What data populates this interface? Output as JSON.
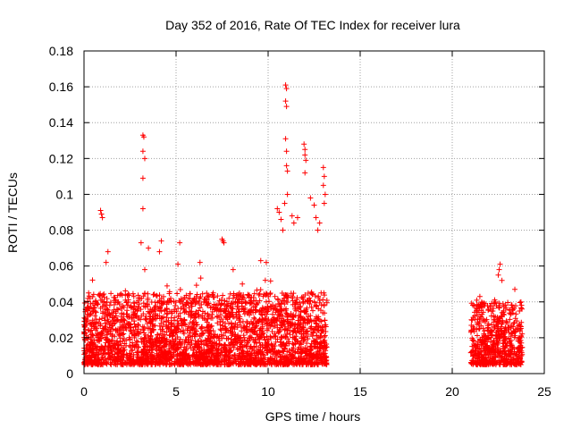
{
  "chart_data": {
    "type": "scatter",
    "title": "Day 352 of 2016, Rate Of TEC Index for receiver lura",
    "xlabel": "GPS time / hours",
    "ylabel": "ROTI / TECUs",
    "xlim": [
      0,
      25
    ],
    "ylim": [
      0,
      0.18
    ],
    "xticks": [
      0,
      5,
      10,
      15,
      20,
      25
    ],
    "yticks": [
      0,
      0.02,
      0.04,
      0.06,
      0.08,
      0.1,
      0.12,
      0.14,
      0.16,
      0.18
    ],
    "xtick_labels": [
      "0",
      "5",
      "10",
      "15",
      "20",
      "25"
    ],
    "ytick_labels": [
      "0",
      "0.02",
      "0.04",
      "0.06",
      "0.08",
      "0.1",
      "0.12",
      "0.14",
      "0.16",
      "0.18"
    ],
    "grid": true,
    "marker": "+",
    "color": "#ff0000",
    "points": [
      [
        0.9,
        0.091
      ],
      [
        0.95,
        0.089
      ],
      [
        1.0,
        0.087
      ],
      [
        1.3,
        0.068
      ],
      [
        1.2,
        0.062
      ],
      [
        3.2,
        0.133
      ],
      [
        3.25,
        0.132
      ],
      [
        3.2,
        0.124
      ],
      [
        3.3,
        0.12
      ],
      [
        3.2,
        0.109
      ],
      [
        3.2,
        0.092
      ],
      [
        3.1,
        0.073
      ],
      [
        3.5,
        0.07
      ],
      [
        3.3,
        0.058
      ],
      [
        4.2,
        0.074
      ],
      [
        4.1,
        0.068
      ],
      [
        5.2,
        0.073
      ],
      [
        5.1,
        0.061
      ],
      [
        6.3,
        0.062
      ],
      [
        7.5,
        0.075
      ],
      [
        7.55,
        0.074
      ],
      [
        7.6,
        0.073
      ],
      [
        8.1,
        0.058
      ],
      [
        8.6,
        0.05
      ],
      [
        9.6,
        0.063
      ],
      [
        9.9,
        0.062
      ],
      [
        10.5,
        0.092
      ],
      [
        10.6,
        0.09
      ],
      [
        10.7,
        0.086
      ],
      [
        10.8,
        0.08
      ],
      [
        10.95,
        0.161
      ],
      [
        11.0,
        0.159
      ],
      [
        10.95,
        0.152
      ],
      [
        11.0,
        0.149
      ],
      [
        10.95,
        0.131
      ],
      [
        11.0,
        0.124
      ],
      [
        11.0,
        0.116
      ],
      [
        11.05,
        0.113
      ],
      [
        11.05,
        0.1
      ],
      [
        10.9,
        0.095
      ],
      [
        11.3,
        0.088
      ],
      [
        11.6,
        0.087
      ],
      [
        11.4,
        0.084
      ],
      [
        11.95,
        0.128
      ],
      [
        12.0,
        0.125
      ],
      [
        12.0,
        0.122
      ],
      [
        12.05,
        0.119
      ],
      [
        12.0,
        0.112
      ],
      [
        12.3,
        0.098
      ],
      [
        12.5,
        0.094
      ],
      [
        12.6,
        0.087
      ],
      [
        12.8,
        0.084
      ],
      [
        12.7,
        0.08
      ],
      [
        13.0,
        0.115
      ],
      [
        13.05,
        0.11
      ],
      [
        13.0,
        0.105
      ],
      [
        13.1,
        0.1
      ],
      [
        13.05,
        0.095
      ],
      [
        22.6,
        0.061
      ],
      [
        22.55,
        0.058
      ],
      [
        22.5,
        0.055
      ],
      [
        22.7,
        0.052
      ],
      [
        21.5,
        0.043
      ],
      [
        23.4,
        0.047
      ]
    ],
    "dense_segments": [
      {
        "x_start": 0.0,
        "x_end": 13.2,
        "y_floor": 0.005,
        "y_typical": 0.045
      },
      {
        "x_start": 21.0,
        "x_end": 23.8,
        "y_floor": 0.005,
        "y_typical": 0.04
      }
    ]
  }
}
